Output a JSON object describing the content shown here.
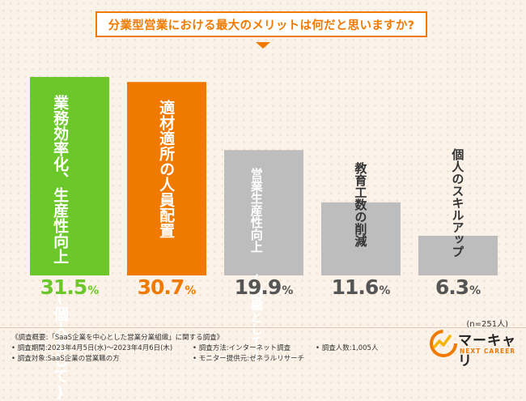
{
  "header": {
    "title": "分業型営業における最大のメリットは何だと思いますか?"
  },
  "colors": {
    "accent": "#f07a00",
    "bar_green": "#6cc72b",
    "bar_orange": "#f07a00",
    "bar_gray": "#bdbdbd"
  },
  "chart_data": {
    "type": "bar",
    "title": "分業型営業における最大のメリットは何だと思いますか?",
    "categories": [
      "業務効率化、生産性向上(個人として)",
      "適材適所の人員配置",
      "営業生産性向上(組織として)",
      "教育工数の削減",
      "個人のスキルアップ"
    ],
    "category_lines": [
      [
        "業務効率化、生産性向上",
        "(個人として)"
      ],
      [
        "適材適所の人員配置"
      ],
      [
        "営業生産性向上",
        "(組織として)"
      ],
      [
        "教育工数の削減"
      ],
      [
        "個人のスキルアップ"
      ]
    ],
    "values": [
      31.5,
      30.7,
      19.9,
      11.6,
      6.3
    ],
    "unit": "%",
    "ylim": [
      0,
      31.5
    ],
    "grid": false,
    "sample_size": "(n=251人)"
  },
  "footer": {
    "overview": "《調査概要:「SaaS企業を中心とした営業分業組織」に関する調査》",
    "period": "• 調査期間:2023年4月5日(水)〜2023年4月6日(木)",
    "method": "• 調査方法:インターネット調査",
    "count": "• 調査人数:1,005人",
    "target": "• 調査対象:SaaS企業の営業職の方",
    "provider": "• モニター提供元:ゼネラルリサーチ"
  },
  "logo": {
    "name": "マーキャリ",
    "tagline": "NEXT CAREER"
  }
}
